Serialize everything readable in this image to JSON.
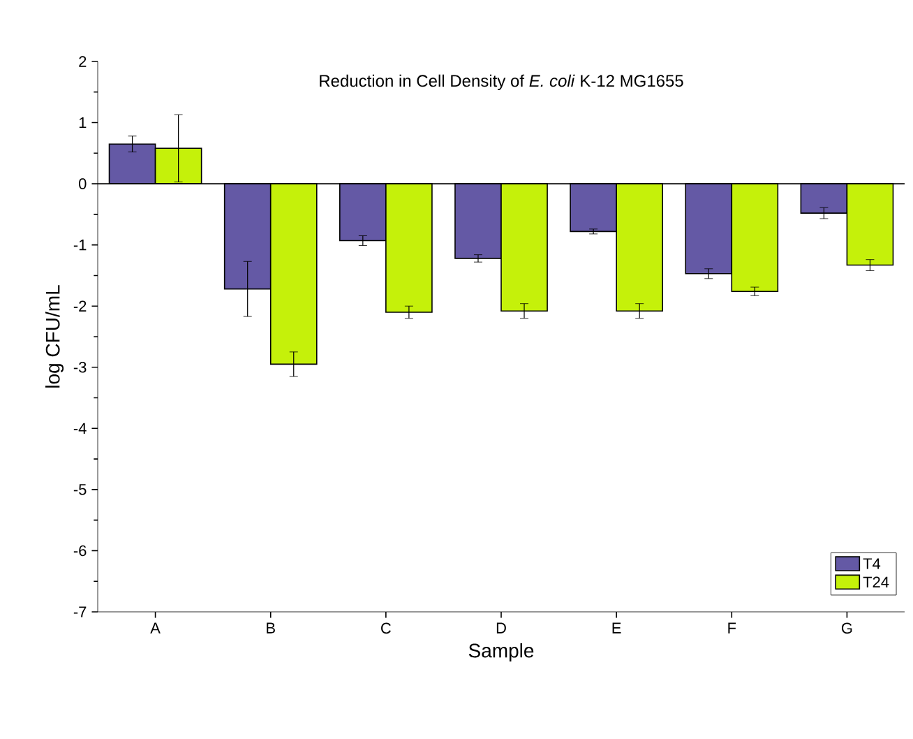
{
  "chart_data": {
    "type": "bar",
    "title": "Reduction in Cell Density of *E. coli* K-12 MG1655",
    "xlabel": "Sample",
    "ylabel": "log CFU/mL",
    "categories": [
      "A",
      "B",
      "C",
      "D",
      "E",
      "F",
      "G"
    ],
    "series": [
      {
        "name": "T4",
        "color": "#6459a5",
        "values": [
          0.65,
          -1.72,
          -0.93,
          -1.22,
          -0.78,
          -1.47,
          -0.48
        ],
        "errors": [
          0.13,
          0.45,
          0.08,
          0.06,
          0.04,
          0.08,
          0.09
        ]
      },
      {
        "name": "T24",
        "color": "#c5f10a",
        "values": [
          0.58,
          -2.95,
          -2.1,
          -2.08,
          -2.08,
          -1.76,
          -1.33
        ],
        "errors": [
          0.55,
          0.2,
          0.1,
          0.12,
          0.12,
          0.07,
          0.09
        ]
      }
    ],
    "ylim": [
      -7,
      2
    ],
    "yticks": [
      -7,
      -6,
      -5,
      -4,
      -3,
      -2,
      -1,
      0,
      1,
      2
    ],
    "legend": "bottom right"
  }
}
